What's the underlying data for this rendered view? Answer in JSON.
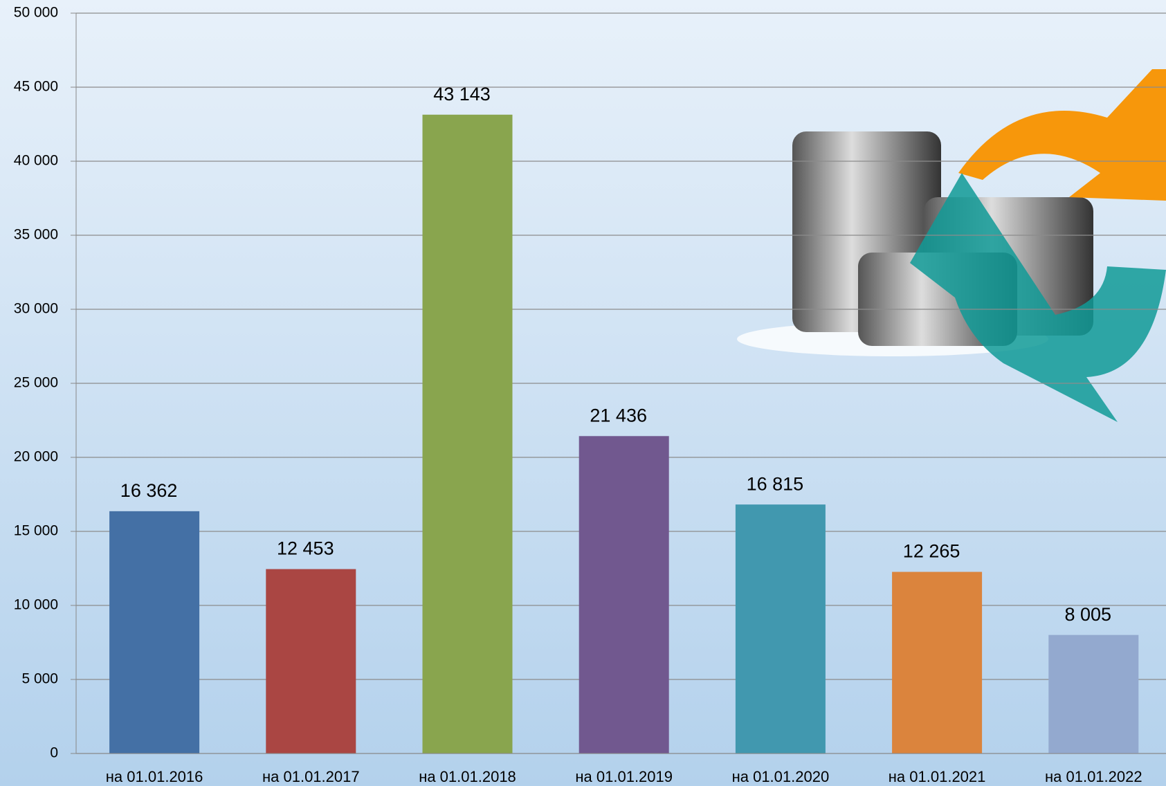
{
  "chart_data": {
    "type": "bar",
    "categories": [
      "на 01.01.2016",
      "на 01.01.2017",
      "на 01.01.2018",
      "на 01.01.2019",
      "на 01.01.2020",
      "на 01.01.2021",
      "на 01.01.2022"
    ],
    "values": [
      16362,
      12453,
      43143,
      21436,
      16815,
      12265,
      8005
    ],
    "value_labels": [
      "16 362",
      "12 453",
      "43 143",
      "21 436",
      "16 815",
      "12 265",
      "8 005"
    ],
    "colors": [
      "#4470a5",
      "#aa4643",
      "#89a54e",
      "#71588f",
      "#4198af",
      "#db843d",
      "#93a9cf"
    ],
    "ylim": [
      0,
      50000
    ],
    "yticks": [
      0,
      {
        "value": 5000,
        "label": "5 000"
      },
      {
        "value": 10000,
        "label": "10 000"
      },
      {
        "value": 15000,
        "label": "15 000"
      },
      {
        "value": 20000,
        "label": "20 000"
      },
      {
        "value": 25000,
        "label": "25 000"
      },
      {
        "value": 30000,
        "label": "30 000"
      },
      {
        "value": 35000,
        "label": "35 000"
      },
      {
        "value": 40000,
        "label": "40 000"
      },
      {
        "value": 45000,
        "label": "45 000"
      },
      {
        "value": 50000,
        "label": "50 000"
      }
    ],
    "grid": true
  }
}
